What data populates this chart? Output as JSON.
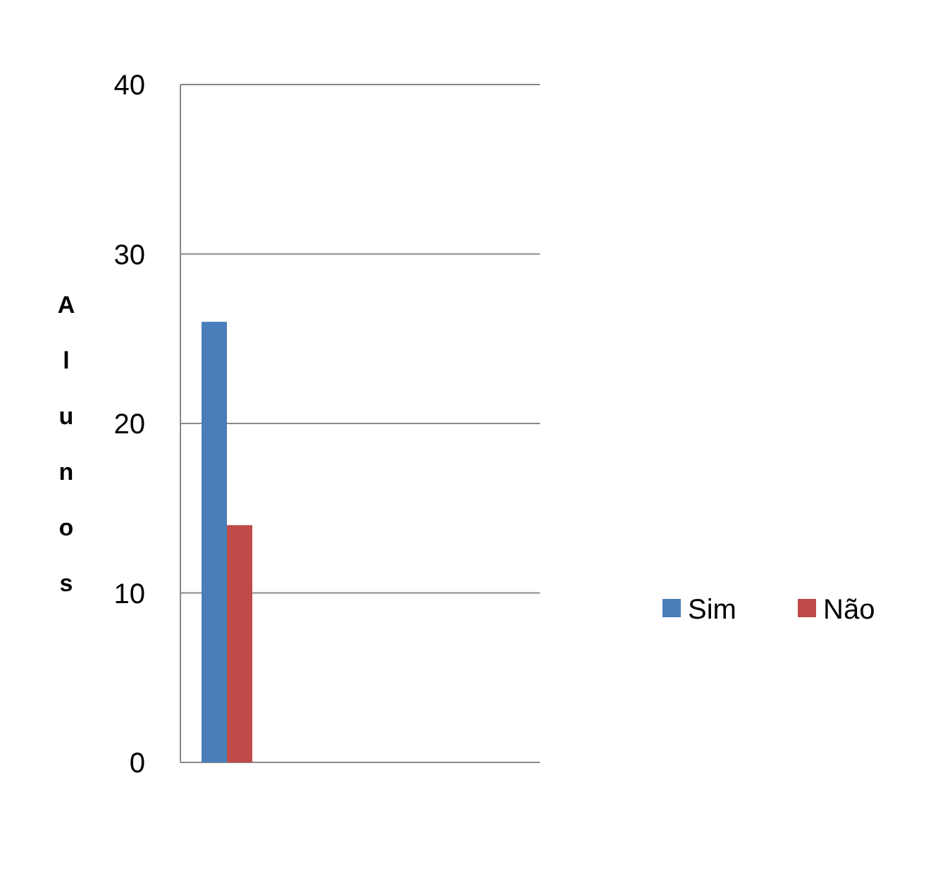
{
  "chart_data": {
    "type": "bar",
    "categories": [
      null
    ],
    "ylabel": "Alunos",
    "ylim": [
      0,
      40
    ],
    "yticks": [
      0,
      10,
      20,
      30,
      40
    ],
    "grid": "y",
    "legend": "right",
    "series": [
      {
        "name": "Sim",
        "color": "#4a7ebb",
        "values": [
          26
        ]
      },
      {
        "name": "Não",
        "color": "#be4b48",
        "values": [
          14
        ]
      }
    ]
  }
}
